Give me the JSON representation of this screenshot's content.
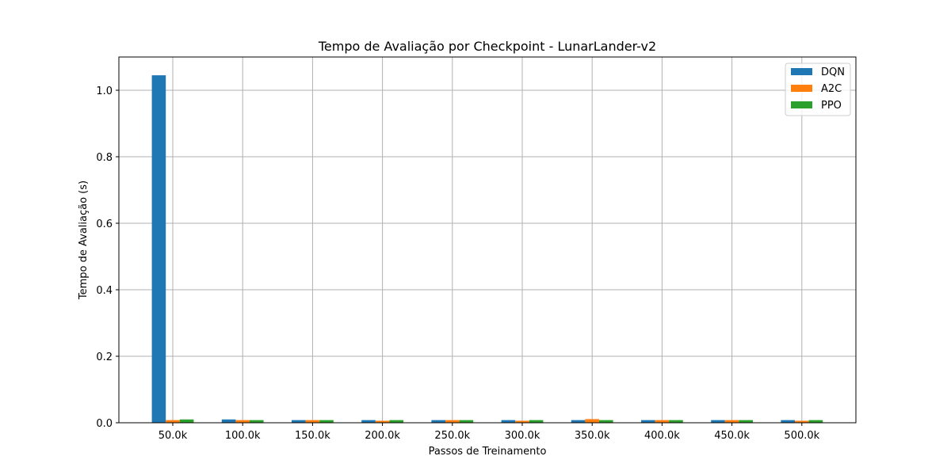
{
  "chart_data": {
    "type": "bar",
    "title": "Tempo de Avaliação por Checkpoint - LunarLander-v2",
    "xlabel": "Passos de Treinamento",
    "ylabel": "Tempo de Avaliação (s)",
    "categories": [
      "50.0k",
      "100.0k",
      "150.0k",
      "200.0k",
      "250.0k",
      "300.0k",
      "350.0k",
      "400.0k",
      "450.0k",
      "500.0k"
    ],
    "series": [
      {
        "name": "DQN",
        "color": "#1f77b4",
        "values": [
          1.045,
          0.01,
          0.008,
          0.008,
          0.008,
          0.008,
          0.008,
          0.008,
          0.008,
          0.008
        ]
      },
      {
        "name": "A2C",
        "color": "#ff7f0e",
        "values": [
          0.008,
          0.008,
          0.008,
          0.006,
          0.008,
          0.006,
          0.011,
          0.008,
          0.008,
          0.006
        ]
      },
      {
        "name": "PPO",
        "color": "#2ca02c",
        "values": [
          0.01,
          0.008,
          0.008,
          0.008,
          0.008,
          0.008,
          0.008,
          0.008,
          0.008,
          0.008
        ]
      }
    ],
    "ylim": [
      0,
      1.1
    ],
    "yticks": [
      "0.0",
      "0.2",
      "0.4",
      "0.6",
      "0.8",
      "1.0"
    ],
    "grid": true,
    "legend_position": "top-right"
  }
}
